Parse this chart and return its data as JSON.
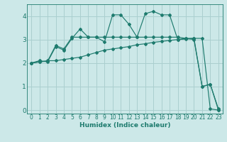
{
  "xlabel": "Humidex (Indice chaleur)",
  "background_color": "#cce8e8",
  "grid_color": "#aacfcf",
  "line_color": "#1e7b6e",
  "xlim": [
    -0.5,
    23.5
  ],
  "ylim": [
    -0.15,
    4.5
  ],
  "xticks": [
    0,
    1,
    2,
    3,
    4,
    5,
    6,
    7,
    8,
    9,
    10,
    11,
    12,
    13,
    14,
    15,
    16,
    17,
    18,
    19,
    20,
    21,
    22,
    23
  ],
  "yticks": [
    0,
    1,
    2,
    3,
    4
  ],
  "series1_x": [
    0,
    1,
    2,
    3,
    4,
    5,
    6,
    7,
    8,
    9,
    10,
    11,
    12,
    13,
    14,
    15,
    16,
    17,
    18,
    19,
    20,
    21,
    22,
    23
  ],
  "series1_y": [
    2.0,
    2.1,
    2.05,
    2.7,
    2.55,
    3.05,
    3.45,
    3.1,
    3.1,
    2.9,
    4.05,
    4.05,
    3.65,
    3.1,
    4.1,
    4.2,
    4.05,
    4.05,
    3.0,
    3.05,
    3.0,
    1.0,
    1.1,
    0.0
  ],
  "series2_x": [
    0,
    1,
    2,
    3,
    4,
    5,
    6,
    7,
    8,
    9,
    10,
    11,
    12,
    13,
    14,
    15,
    16,
    17,
    18,
    19,
    20,
    21,
    22,
    23
  ],
  "series2_y": [
    2.0,
    2.05,
    2.1,
    2.1,
    2.15,
    2.2,
    2.25,
    2.35,
    2.45,
    2.55,
    2.6,
    2.65,
    2.7,
    2.78,
    2.82,
    2.88,
    2.92,
    2.96,
    3.0,
    3.02,
    3.05,
    3.05,
    0.05,
    0.0
  ],
  "series3_x": [
    0,
    1,
    2,
    3,
    4,
    5,
    6,
    7,
    8,
    9,
    10,
    11,
    12,
    13,
    14,
    15,
    16,
    17,
    18,
    19,
    20,
    21,
    22,
    23
  ],
  "series3_y": [
    2.0,
    2.05,
    2.08,
    2.75,
    2.6,
    3.1,
    3.1,
    3.1,
    3.1,
    3.1,
    3.1,
    3.1,
    3.1,
    3.1,
    3.1,
    3.1,
    3.1,
    3.1,
    3.1,
    3.05,
    3.05,
    1.0,
    1.1,
    0.05
  ]
}
